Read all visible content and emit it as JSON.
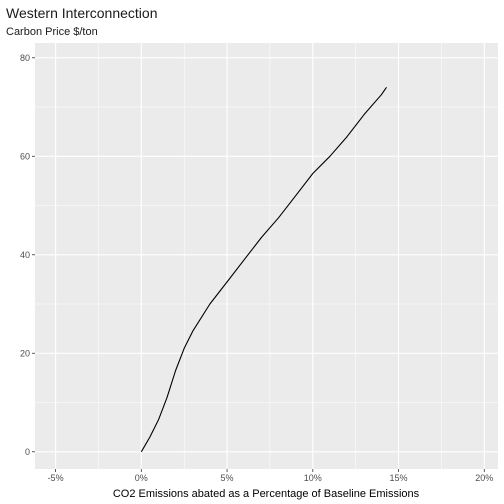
{
  "chart_data": {
    "type": "line",
    "title": "Western Interconnection",
    "subtitle": "Carbon Price $/ton",
    "xlabel": "CO2 Emissions abated as a Percentage of Baseline Emissions",
    "ylabel": "",
    "xlim": [
      -6.2,
      20.8
    ],
    "ylim": [
      -3.5,
      83
    ],
    "x_ticks": [
      -5,
      0,
      5,
      10,
      15,
      20
    ],
    "x_tick_labels": [
      "-5%",
      "0%",
      "5%",
      "10%",
      "15%",
      "20%"
    ],
    "y_ticks": [
      0,
      20,
      40,
      60,
      80
    ],
    "y_tick_labels": [
      "0",
      "20",
      "40",
      "60",
      "80"
    ],
    "grid": true,
    "background": "#ebebeb",
    "grid_color": "#ffffff",
    "line_color": "#000000",
    "series": [
      {
        "x": [
          0,
          0.5,
          1.0,
          1.5,
          2.0,
          2.5,
          3.0,
          4.0,
          5.0,
          6.0,
          7.0,
          8.0,
          9.0,
          10.0,
          11.0,
          12.0,
          13.0,
          14.0,
          14.3
        ],
        "y": [
          0,
          3,
          6.5,
          11,
          16.5,
          21,
          24.5,
          30,
          34.5,
          39,
          43.5,
          47.5,
          52,
          56.5,
          60,
          64,
          68.5,
          72.5,
          74
        ]
      }
    ]
  }
}
